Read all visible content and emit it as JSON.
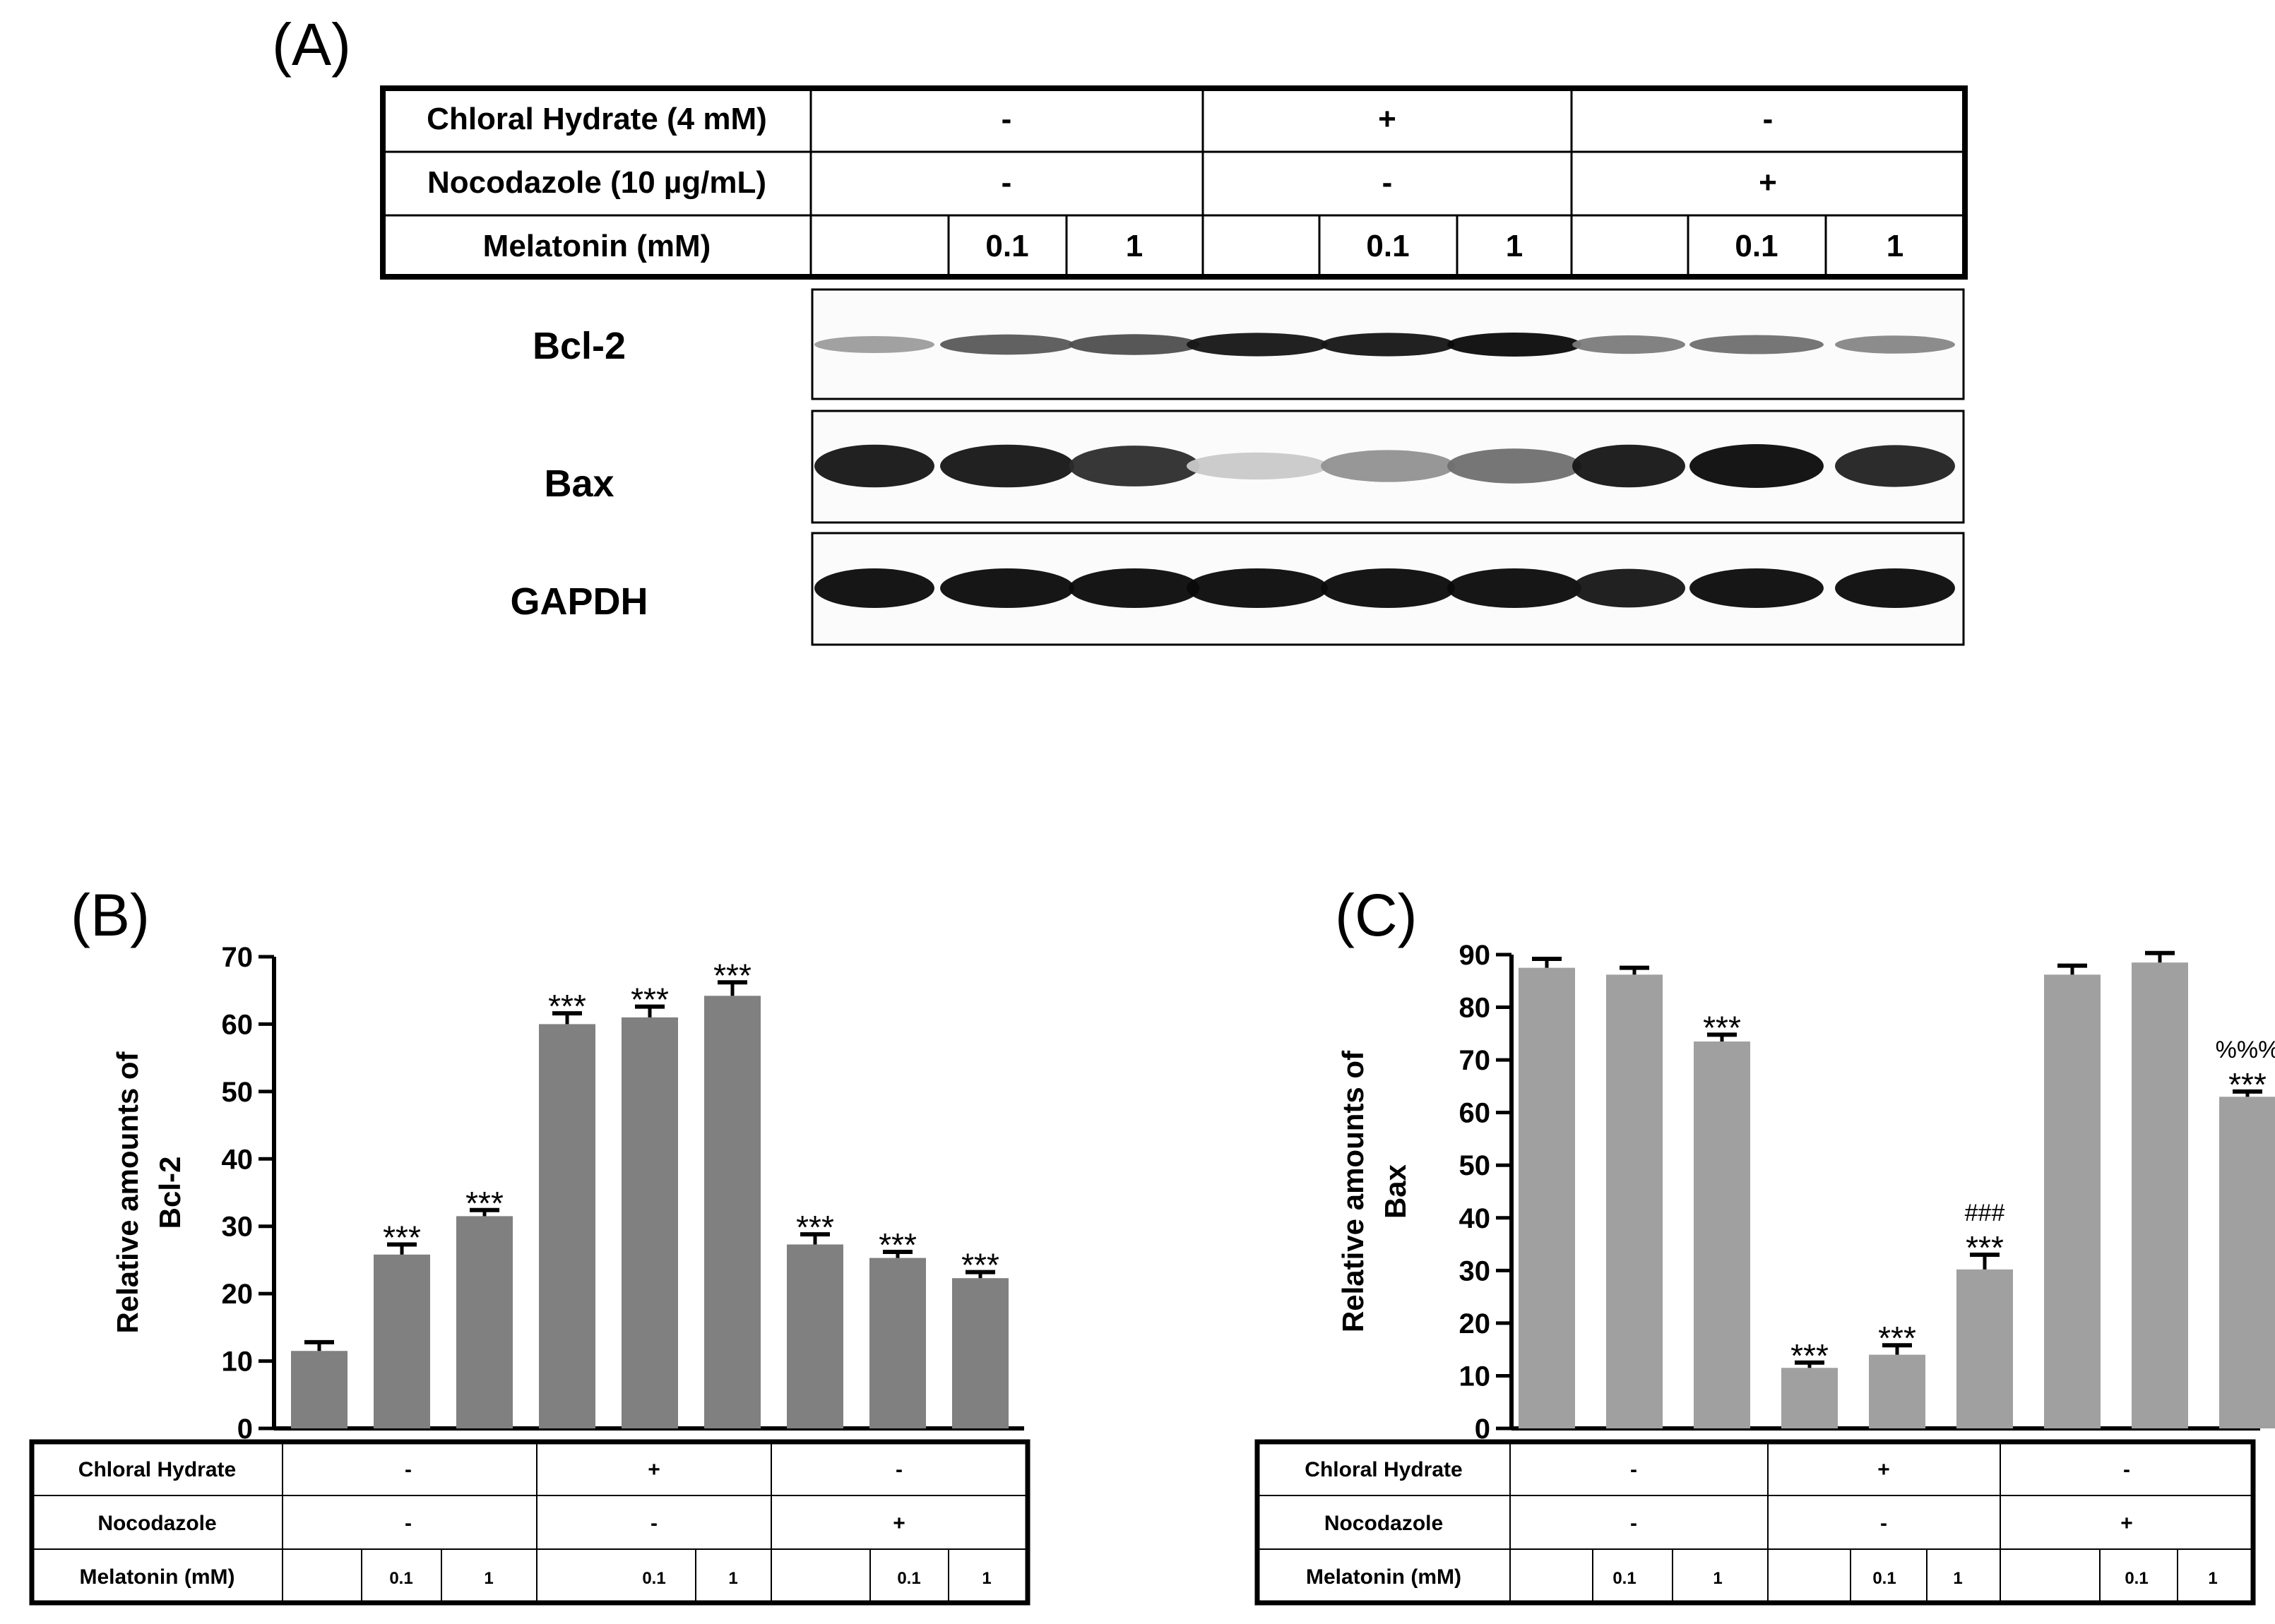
{
  "panel_a": {
    "label": "(A)",
    "header_rows": [
      {
        "name": "Chloral Hydrate  (4 mM)",
        "groups": [
          "-",
          "+",
          "-"
        ]
      },
      {
        "name": "Nocodazole (10 µg/mL)",
        "groups": [
          "-",
          "-",
          "+"
        ]
      },
      {
        "name": "Melatonin (mM)",
        "lanes": [
          "",
          "0.1",
          "1",
          "",
          "0.1",
          "1",
          "",
          "0.1",
          "1"
        ]
      }
    ],
    "blots": [
      {
        "label": "Bcl-2",
        "intensities": [
          0.35,
          0.65,
          0.7,
          0.95,
          0.95,
          1.0,
          0.5,
          0.55,
          0.45
        ]
      },
      {
        "label": "Bax",
        "intensities": [
          0.95,
          0.95,
          0.85,
          0.15,
          0.4,
          0.55,
          0.95,
          1.0,
          0.9
        ]
      },
      {
        "label": "GAPDH",
        "intensities": [
          1.0,
          1.0,
          1.0,
          1.0,
          1.0,
          1.0,
          0.95,
          1.0,
          1.0
        ]
      }
    ]
  },
  "chart_data": [
    {
      "panel_label": "(B)",
      "type": "bar",
      "ylabel_line1": "Relative amounts of",
      "ylabel_line2": "Bcl-2",
      "xlabel": "",
      "ylim": [
        0,
        70
      ],
      "yticks": [
        0,
        10,
        20,
        30,
        40,
        50,
        60,
        70
      ],
      "values": [
        11.5,
        25.8,
        31.5,
        60.0,
        61.0,
        64.2,
        27.3,
        25.3,
        22.3
      ],
      "errors": [
        1.3,
        1.5,
        0.9,
        1.6,
        1.6,
        2.0,
        1.5,
        0.9,
        0.9
      ],
      "annotations": [
        [],
        [
          "***"
        ],
        [
          "***"
        ],
        [
          "***"
        ],
        [
          "***"
        ],
        [
          "***"
        ],
        [
          "***"
        ],
        [
          "***"
        ],
        [
          "***"
        ]
      ],
      "bar_color": "#808080",
      "condition_table": {
        "rows": [
          {
            "name": "Chloral Hydrate",
            "groups": [
              "-",
              "+",
              "-"
            ]
          },
          {
            "name": "Nocodazole",
            "groups": [
              "-",
              "-",
              "+"
            ]
          },
          {
            "name": "Melatonin (mM)",
            "lanes": [
              "",
              "0.1",
              "1",
              "",
              "0.1",
              "1",
              "",
              "0.1",
              "1"
            ]
          }
        ]
      }
    },
    {
      "panel_label": "(C)",
      "type": "bar",
      "ylabel_line1": "Relative amounts of",
      "ylabel_line2": "Bax",
      "xlabel": "",
      "ylim": [
        0,
        90
      ],
      "yticks": [
        0,
        10,
        20,
        30,
        40,
        50,
        60,
        70,
        80,
        90
      ],
      "values": [
        87.5,
        86.2,
        73.5,
        11.5,
        14.0,
        30.2,
        86.2,
        88.5,
        63.0
      ],
      "errors": [
        1.7,
        1.3,
        1.3,
        1.0,
        1.8,
        2.8,
        1.7,
        1.8,
        1.0
      ],
      "annotations": [
        [],
        [],
        [
          "***"
        ],
        [
          "***"
        ],
        [
          "***"
        ],
        [
          "###",
          "***"
        ],
        [],
        [],
        [
          "%%%",
          "***"
        ]
      ],
      "bar_color": "#a0a0a0",
      "condition_table": {
        "rows": [
          {
            "name": "Chloral Hydrate",
            "groups": [
              "-",
              "+",
              "-"
            ]
          },
          {
            "name": "Nocodazole",
            "groups": [
              "-",
              "-",
              "+"
            ]
          },
          {
            "name": "Melatonin (mM)",
            "lanes": [
              "",
              "0.1",
              "1",
              "",
              "0.1",
              "1",
              "",
              "0.1",
              "1"
            ]
          }
        ]
      }
    }
  ]
}
